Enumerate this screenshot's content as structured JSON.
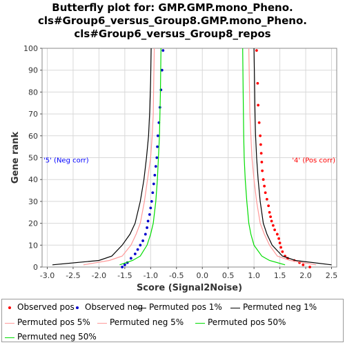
{
  "title_lines": [
    "Butterfly plot for: GMP.GMP.mono_Pheno.",
    "cls#Group6_versus_Group8.GMP.mono_Pheno.",
    "cls#Group6_versus_Group8_repos"
  ],
  "chart_data": {
    "type": "line",
    "xlabel": "Score (Signal2Noise)",
    "ylabel": "Gene rank",
    "xlim": [
      -3.1,
      2.6
    ],
    "ylim": [
      0,
      100
    ],
    "xticks": [
      "-3.0",
      "-2.5",
      "-2.0",
      "-1.5",
      "-1.0",
      "-0.5",
      "0.0",
      "0.5",
      "1.0",
      "1.5",
      "2.0",
      "2.5"
    ],
    "yticks": [
      "0",
      "10",
      "20",
      "30",
      "40",
      "50",
      "60",
      "70",
      "80",
      "90",
      "100"
    ],
    "grid": true,
    "legend_position": "bottom",
    "annotations": [
      {
        "text": "'5' (Neg corr)",
        "color": "#0000ff",
        "side": "left"
      },
      {
        "text": "'4' (Pos corr)",
        "color": "#ff0000",
        "side": "right"
      }
    ],
    "series": [
      {
        "name": "Observed pos",
        "kind": "points",
        "color": "#ff0000",
        "x": [
          2.08,
          1.95,
          1.88,
          1.78,
          1.65,
          1.6,
          1.55,
          1.52,
          1.5,
          1.48,
          1.45,
          1.4,
          1.37,
          1.34,
          1.32,
          1.3,
          1.28,
          1.25,
          1.22,
          1.2,
          1.18,
          1.16,
          1.15,
          1.14,
          1.13,
          1.12,
          1.1,
          1.08,
          1.07,
          1.05
        ],
        "y": [
          0,
          1,
          2,
          3,
          4,
          5,
          7,
          9,
          11,
          13,
          15,
          17,
          19,
          21,
          23,
          25,
          28,
          31,
          34,
          37,
          40,
          44,
          48,
          52,
          56,
          60,
          66,
          74,
          84,
          99
        ]
      },
      {
        "name": "Observed neg",
        "kind": "points",
        "color": "#0000cc",
        "x": [
          -1.55,
          -1.5,
          -1.45,
          -1.38,
          -1.3,
          -1.25,
          -1.2,
          -1.15,
          -1.1,
          -1.07,
          -1.05,
          -1.02,
          -1.0,
          -0.98,
          -0.96,
          -0.94,
          -0.92,
          -0.9,
          -0.88,
          -0.87,
          -0.86,
          -0.84,
          -0.82,
          -0.8,
          -0.78,
          -0.76
        ],
        "y": [
          0,
          1,
          2,
          4,
          6,
          8,
          10,
          12,
          15,
          18,
          21,
          24,
          27,
          30,
          34,
          38,
          42,
          46,
          50,
          55,
          60,
          66,
          73,
          81,
          90,
          99
        ]
      },
      {
        "name": "Permuted pos 1%",
        "kind": "line",
        "color": "#000000",
        "x": [
          2.5,
          1.8,
          1.55,
          1.35,
          1.25,
          1.18,
          1.12,
          1.08,
          1.05,
          1.03,
          1.02,
          1.01,
          1.0
        ],
        "y": [
          1,
          3,
          5,
          10,
          15,
          20,
          30,
          40,
          50,
          60,
          70,
          85,
          100
        ]
      },
      {
        "name": "Permuted neg 1%",
        "kind": "line",
        "color": "#000000",
        "x": [
          -2.9,
          -2.0,
          -1.75,
          -1.55,
          -1.4,
          -1.3,
          -1.2,
          -1.13,
          -1.08,
          -1.04,
          -1.02,
          -1.0,
          -0.99
        ],
        "y": [
          1,
          3,
          5,
          10,
          15,
          20,
          30,
          40,
          50,
          60,
          70,
          85,
          100
        ]
      },
      {
        "name": "Permuted pos 5%",
        "kind": "line",
        "color": "#ff9999",
        "x": [
          2.2,
          1.7,
          1.45,
          1.3,
          1.2,
          1.12,
          1.05,
          1.0,
          0.96,
          0.94,
          0.92,
          0.91,
          0.9
        ],
        "y": [
          1,
          3,
          5,
          10,
          15,
          20,
          30,
          40,
          50,
          60,
          70,
          85,
          100
        ]
      },
      {
        "name": "Permuted neg 5%",
        "kind": "line",
        "color": "#ff9999",
        "x": [
          -2.3,
          -1.8,
          -1.55,
          -1.38,
          -1.28,
          -1.2,
          -1.12,
          -1.06,
          -1.0,
          -0.97,
          -0.95,
          -0.94,
          -0.93
        ],
        "y": [
          1,
          3,
          5,
          10,
          15,
          20,
          30,
          40,
          50,
          60,
          70,
          85,
          100
        ]
      },
      {
        "name": "Permuted pos 50%",
        "kind": "line",
        "color": "#00dd00",
        "x": [
          1.6,
          1.3,
          1.15,
          1.0,
          0.94,
          0.9,
          0.86,
          0.83,
          0.81,
          0.8,
          0.79,
          0.78
        ],
        "y": [
          1,
          3,
          5,
          10,
          15,
          20,
          30,
          40,
          50,
          60,
          80,
          100
        ]
      },
      {
        "name": "Permuted neg 50%",
        "kind": "line",
        "color": "#00dd00",
        "x": [
          -1.6,
          -1.35,
          -1.2,
          -1.07,
          -1.0,
          -0.95,
          -0.9,
          -0.87,
          -0.85,
          -0.83,
          -0.81,
          -0.8
        ],
        "y": [
          1,
          3,
          5,
          10,
          15,
          20,
          30,
          40,
          50,
          60,
          80,
          100
        ]
      }
    ]
  }
}
